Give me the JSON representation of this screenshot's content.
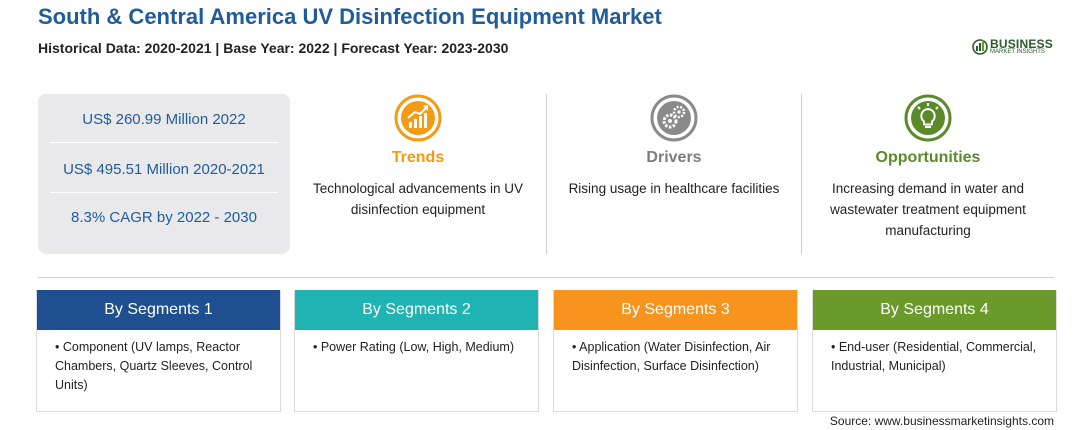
{
  "header": {
    "title": "South & Central America UV Disinfection Equipment Market",
    "subtitle": "Historical Data: 2020-2021 | Base Year: 2022 | Forecast Year: 2023-2030"
  },
  "logo": {
    "name": "BUSINESS",
    "tagline": "MARKET INSIGHTS",
    "icon": "globe-chart-icon"
  },
  "stats": [
    "US$ 260.99 Million 2022",
    "US$ 495.51 Million 2020-2021",
    "8.3% CAGR by 2022 - 2030"
  ],
  "columns": [
    {
      "title": "Trends",
      "text": "Technological advancements in UV disinfection equipment",
      "icon": "trend-chart-icon",
      "color": "#f39a17"
    },
    {
      "title": "Drivers",
      "text": "Rising usage in healthcare facilities",
      "icon": "gears-icon",
      "color": "#7d7d7d"
    },
    {
      "title": "Opportunities",
      "text": "Increasing demand in water and wastewater treatment equipment manufacturing",
      "icon": "lightbulb-icon",
      "color": "#5b8a2a"
    }
  ],
  "segments": [
    {
      "title": "By Segments 1",
      "text": "• Component (UV lamps, Reactor Chambers, Quartz Sleeves, Control Units)",
      "color": "#1f4e91"
    },
    {
      "title": "By Segments 2",
      "text": "• Power Rating (Low, High, Medium)",
      "color": "#1fb3b3"
    },
    {
      "title": "By Segments 3",
      "text": "• Application (Water Disinfection, Air Disinfection, Surface Disinfection)",
      "color": "#f7941d"
    },
    {
      "title": "By Segments 4",
      "text": "• End-user (Residential, Commercial, Industrial, Municipal)",
      "color": "#6a9a2a"
    }
  ],
  "source": "Source: www.businessmarketinsights.com"
}
